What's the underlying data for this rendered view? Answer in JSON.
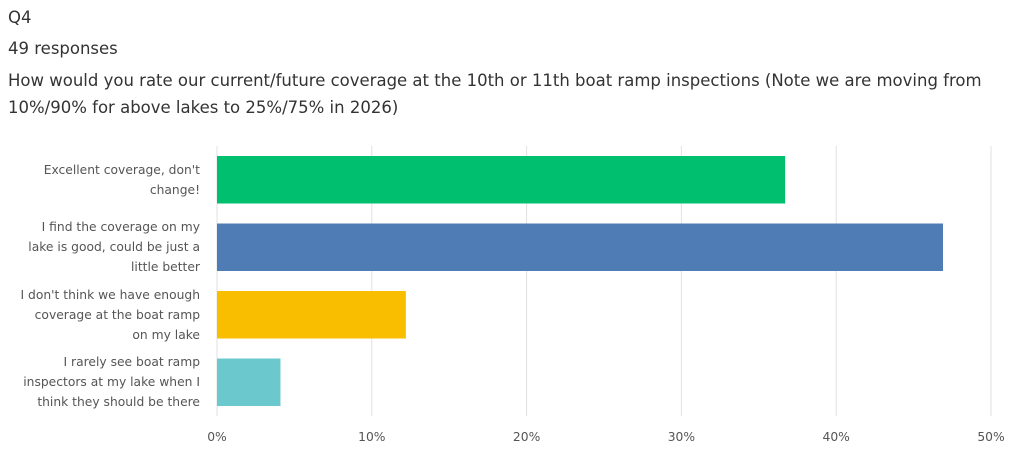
{
  "chart_data": {
    "type": "bar",
    "orientation": "horizontal",
    "question_number": "Q4",
    "responses": "49 responses",
    "title": "How would you rate our current/future coverage at the 10th or 11th boat ramp inspections (Note we are moving from 10%/90% for above lakes to 25%/75% in 2026)",
    "categories": [
      "Excellent coverage, don't change!",
      "I find the coverage on my lake is good, could be just a little better",
      "I don't think we have enough coverage at the boat ramp on my lake",
      "I rarely see boat ramp inspectors at my lake when I think they should be there"
    ],
    "values": [
      36.7,
      46.9,
      12.2,
      4.1
    ],
    "colors": [
      "#00bf6f",
      "#507cb6",
      "#f9be00",
      "#6bc8cd"
    ],
    "xlim": [
      0,
      50
    ],
    "xticks": [
      {
        "value": 0,
        "label": "0%"
      },
      {
        "value": 10,
        "label": "10%"
      },
      {
        "value": 20,
        "label": "20%"
      },
      {
        "value": 30,
        "label": "30%"
      },
      {
        "value": 40,
        "label": "40%"
      },
      {
        "value": 50,
        "label": "50%"
      }
    ],
    "grid": true
  }
}
